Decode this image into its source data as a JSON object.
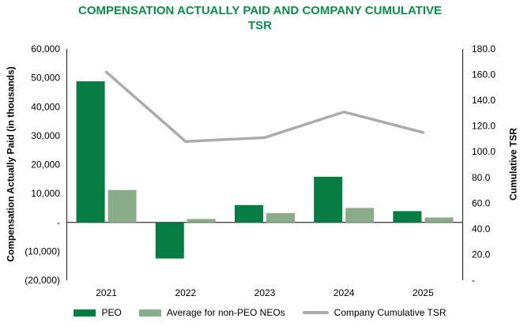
{
  "chart_data": {
    "type": "combo-bar-line",
    "title": "COMPENSATION ACTUALLY PAID AND COMPANY CUMULATIVE TSR",
    "categories": [
      "2021",
      "2022",
      "2023",
      "2024",
      "2025"
    ],
    "series": [
      {
        "name": "PEO",
        "type": "bar",
        "axis": "left",
        "color": "#077d44",
        "values": [
          48800,
          -12500,
          6000,
          15800,
          3900
        ]
      },
      {
        "name": "Average for non-PEO NEOs",
        "type": "bar",
        "axis": "left",
        "color": "#8aad89",
        "values": [
          11200,
          1200,
          3200,
          5000,
          1700
        ]
      },
      {
        "name": "Company Cumulative TSR",
        "type": "line",
        "axis": "right",
        "color": "#ababab",
        "values": [
          162,
          108,
          111,
          131,
          115
        ]
      }
    ],
    "left_axis": {
      "title": "Compensation Actually Paid (in thousands)",
      "min": -20000,
      "max": 60000,
      "tick_step": 10000,
      "tick_labels": [
        "60,000",
        "50,000",
        "40,000",
        "30,000",
        "20,000",
        "10,000",
        "-",
        "(10,000)",
        "(20,000)"
      ]
    },
    "right_axis": {
      "title": "Cumulative TSR",
      "min": 0,
      "max": 180,
      "tick_step": 20,
      "tick_labels": [
        "180.0",
        "160.0",
        "140.0",
        "120.0",
        "100.0",
        "80.0",
        "60.0",
        "40.0",
        "20.0",
        "-"
      ]
    },
    "legend_position": "bottom",
    "grid": false,
    "colors": {
      "title_green": "#0c8c4c",
      "peo_bar": "#077d44",
      "non_peo_bar": "#8aad89",
      "tsr_line": "#ababab",
      "axis_line": "#333333",
      "tick_text": "#000000"
    }
  }
}
